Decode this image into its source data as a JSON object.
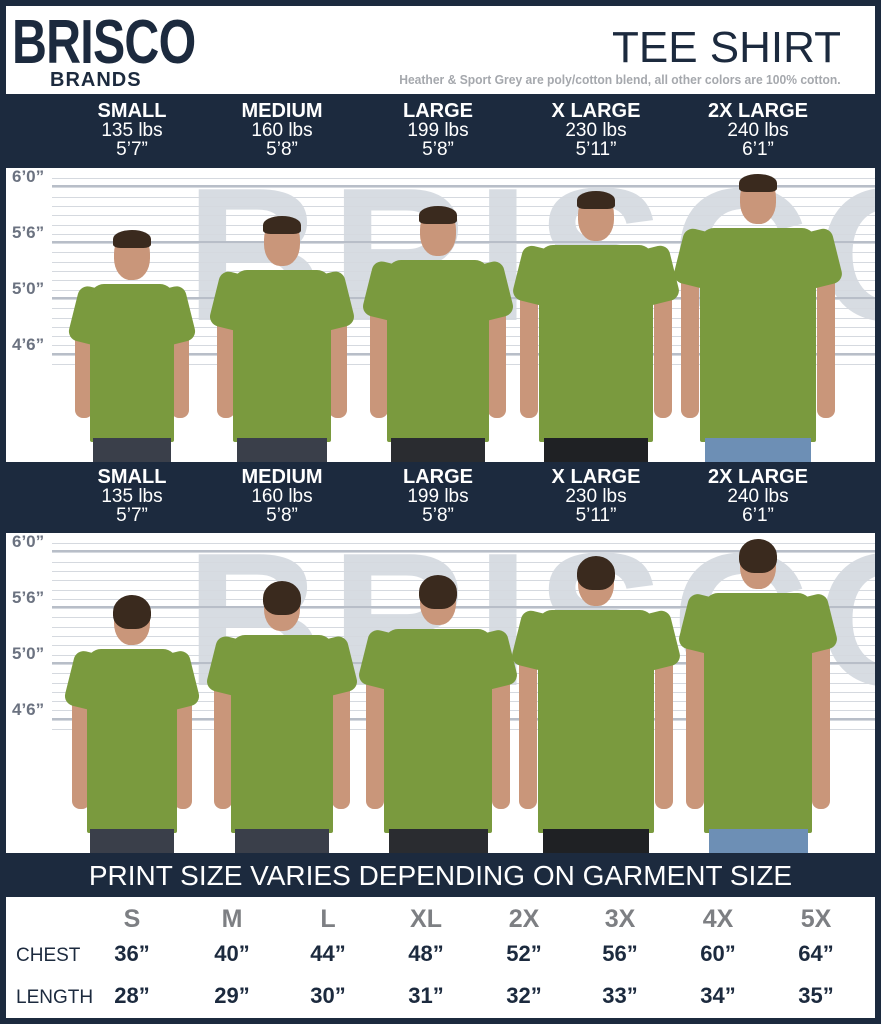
{
  "header": {
    "logo_top": "BRISCO",
    "logo_bottom": "BRANDS",
    "title": "TEE SHIRT",
    "subtitle": "Heather & Sport Grey are poly/cotton blend, all other colors are 100% cotton."
  },
  "models": [
    {
      "size": "SMALL",
      "weight": "135 lbs",
      "height": "5’7”"
    },
    {
      "size": "MEDIUM",
      "weight": "160 lbs",
      "height": "5’8”"
    },
    {
      "size": "LARGE",
      "weight": "199 lbs",
      "height": "5’8”"
    },
    {
      "size": "X LARGE",
      "weight": "230 lbs",
      "height": "5’11”"
    },
    {
      "size": "2X LARGE",
      "weight": "240 lbs",
      "height": "6’1”"
    }
  ],
  "ruler": [
    "6’0”",
    "5’6”",
    "5’0”",
    "4’6”"
  ],
  "watermark": "BRISCO",
  "views": [
    "front",
    "back"
  ],
  "print_note": "PRINT SIZE VARIES DEPENDING ON GARMENT SIZE",
  "table": {
    "sizes": [
      "S",
      "M",
      "L",
      "XL",
      "2X",
      "3X",
      "4X",
      "5X"
    ],
    "rows": [
      {
        "label": "CHEST",
        "values": [
          "36”",
          "40”",
          "44”",
          "48”",
          "52”",
          "56”",
          "60”",
          "64”"
        ]
      },
      {
        "label": "LENGTH",
        "values": [
          "28”",
          "29”",
          "30”",
          "31”",
          "32”",
          "33”",
          "34”",
          "35”"
        ]
      }
    ]
  },
  "colors": {
    "navy": "#1c2a3e",
    "shirt_green": "#7a9a3e",
    "subtitle_grey": "#a5a8ad"
  }
}
